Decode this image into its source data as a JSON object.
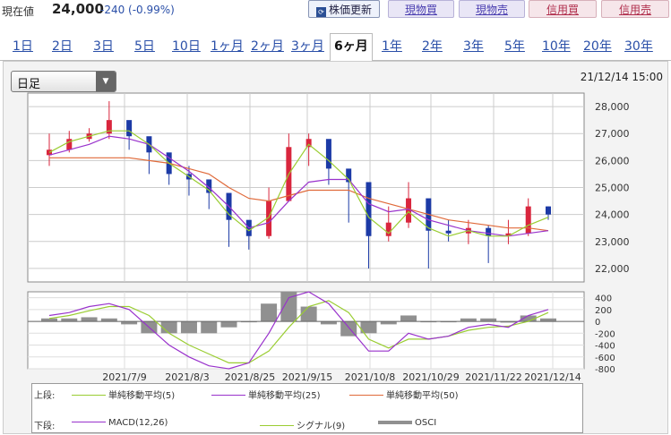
{
  "header": {
    "price_label": "現在値",
    "price_value": "24,000",
    "price_change": "-240 (-0.99%)",
    "update_button": "株価更新",
    "update_icon": "refresh-icon",
    "cash_buy": "現物買",
    "cash_sell": "現物売",
    "margin_buy": "信用買",
    "margin_sell": "信用売"
  },
  "tabs": [
    "1日",
    "2日",
    "3日",
    "5日",
    "10日",
    "1ヶ月",
    "2ヶ月",
    "3ヶ月",
    "6ヶ月",
    "1年",
    "2年",
    "3年",
    "5年",
    "10年",
    "20年",
    "30年"
  ],
  "active_tab": "6ヶ月",
  "select": {
    "value": "日足",
    "options_visible": [
      "日足"
    ]
  },
  "datetime": "21/12/14 15:00",
  "legend": {
    "upper_label": "上段:",
    "lower_label": "下段:",
    "upper_items": [
      {
        "label": "単純移動平均(5)",
        "color": "#9acd32"
      },
      {
        "label": "単純移動平均(25)",
        "color": "#9932cc"
      },
      {
        "label": "単純移動平均(50)",
        "color": "#e06a3a"
      }
    ],
    "lower_items": [
      {
        "label": "MACD(12,26)",
        "color": "#9932cc"
      },
      {
        "label": "シグナル(9)",
        "color": "#9acd32"
      },
      {
        "label": "OSCI",
        "color": "#909090"
      }
    ]
  },
  "colors": {
    "up_candle": "#d9263d",
    "down_candle": "#1c3aa6",
    "ma5": "#9acd32",
    "ma25": "#9932cc",
    "ma50": "#e06a3a",
    "osci": "#909090"
  },
  "chart_data": [
    {
      "type": "candlestick",
      "title": "",
      "ylim": [
        21500,
        28500
      ],
      "yticks": [
        22000,
        23000,
        24000,
        25000,
        26000,
        27000,
        28000
      ],
      "yticklabels": [
        "22,000",
        "23,000",
        "24,000",
        "25,000",
        "26,000",
        "27,000",
        "28,000"
      ],
      "xtick_labels": [
        "2021/7/9",
        "2021/8/3",
        "2021/8/25",
        "2021/9/15",
        "2021/10/8",
        "2021/10/29",
        "2021/11/22",
        "2021/12/14"
      ],
      "grid": true,
      "x_dates": [
        "2021/6/17",
        "2021/6/25",
        "2021/7/2",
        "2021/7/9",
        "2021/7/16",
        "2021/7/23",
        "2021/7/30",
        "2021/8/3",
        "2021/8/10",
        "2021/8/17",
        "2021/8/25",
        "2021/9/1",
        "2021/9/8",
        "2021/9/15",
        "2021/9/22",
        "2021/9/29",
        "2021/10/8",
        "2021/10/15",
        "2021/10/22",
        "2021/10/29",
        "2021/11/5",
        "2021/11/12",
        "2021/11/22",
        "2021/11/29",
        "2021/12/7",
        "2021/12/14"
      ],
      "closes": [
        26400,
        26800,
        27000,
        27500,
        26900,
        26300,
        25500,
        25300,
        24800,
        23800,
        23200,
        24500,
        26500,
        26800,
        25700,
        25200,
        23200,
        23700,
        24600,
        23400,
        23300,
        23500,
        23200,
        23300,
        24300,
        24000
      ],
      "highs": [
        27000,
        27100,
        27200,
        28200,
        27200,
        26600,
        26000,
        25800,
        25200,
        24500,
        23600,
        25000,
        27000,
        27000,
        26000,
        25500,
        24700,
        24300,
        25200,
        24000,
        23800,
        23800,
        23600,
        23800,
        24600,
        24300
      ],
      "lows": [
        25800,
        26300,
        26700,
        26800,
        26400,
        25500,
        25100,
        24700,
        24200,
        22800,
        22700,
        23100,
        26000,
        25800,
        25100,
        23700,
        22000,
        23000,
        23500,
        22000,
        23000,
        22900,
        22200,
        22900,
        23200,
        23800
      ],
      "series": [
        {
          "name": "単純移動平均(5)",
          "values": [
            26300,
            26700,
            26900,
            27100,
            27100,
            26600,
            25900,
            25400,
            24900,
            24000,
            23400,
            23900,
            25500,
            26600,
            26000,
            25300,
            23900,
            23300,
            24100,
            23500,
            23200,
            23400,
            23200,
            23200,
            23600,
            23900
          ]
        },
        {
          "name": "単純移動平均(25)",
          "values": [
            26200,
            26400,
            26600,
            26900,
            26800,
            26600,
            26100,
            25600,
            25000,
            24300,
            23500,
            23700,
            24500,
            25200,
            25300,
            25300,
            24400,
            24100,
            24200,
            23800,
            23600,
            23400,
            23300,
            23200,
            23300,
            23400
          ]
        },
        {
          "name": "単純移動平均(50)",
          "values": [
            26100,
            26100,
            26100,
            26100,
            26100,
            26000,
            25900,
            25700,
            25500,
            25000,
            24600,
            24500,
            24700,
            24900,
            24900,
            24900,
            24600,
            24400,
            24200,
            24000,
            23800,
            23700,
            23600,
            23500,
            23500,
            23400
          ]
        }
      ]
    },
    {
      "type": "line",
      "title": "",
      "ylim": [
        -800,
        500
      ],
      "yticks": [
        -800,
        -600,
        -400,
        -200,
        0,
        200,
        400
      ],
      "yticklabels": [
        "-800",
        "-600",
        "-400",
        "-200",
        "0",
        "200",
        "400"
      ],
      "series": [
        {
          "name": "MACD(12,26)",
          "values": [
            100,
            150,
            250,
            300,
            200,
            -100,
            -400,
            -600,
            -750,
            -800,
            -700,
            -200,
            400,
            500,
            300,
            -100,
            -500,
            -500,
            -200,
            -300,
            -250,
            -100,
            -50,
            -100,
            100,
            200
          ]
        },
        {
          "name": "シグナル(9)",
          "values": [
            50,
            100,
            180,
            250,
            250,
            100,
            -200,
            -400,
            -550,
            -700,
            -700,
            -500,
            -100,
            250,
            350,
            150,
            -300,
            -450,
            -300,
            -300,
            -250,
            -150,
            -100,
            -80,
            0,
            150
          ]
        },
        {
          "name": "OSCI",
          "values": [
            50,
            50,
            70,
            50,
            -50,
            -200,
            -200,
            -200,
            -200,
            -100,
            0,
            300,
            500,
            250,
            -50,
            -250,
            -200,
            -50,
            100,
            0,
            0,
            50,
            50,
            -20,
            100,
            50
          ]
        }
      ]
    }
  ]
}
